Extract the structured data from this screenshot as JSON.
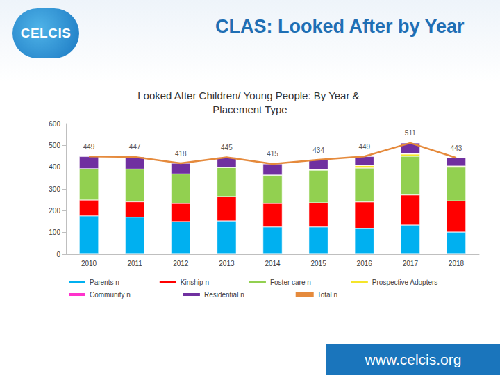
{
  "header": {
    "logo": "CELCIS",
    "title": "CLAS: Looked After by Year",
    "url": "www.celcis.org"
  },
  "chart_data": {
    "type": "bar",
    "title": "Looked After Children/ Young People: By Year & Placement Type",
    "categories": [
      "2010",
      "2011",
      "2012",
      "2013",
      "2014",
      "2015",
      "2016",
      "2017",
      "2018"
    ],
    "stacked": true,
    "grid": false,
    "legend": "bottom",
    "ylim": [
      0,
      600
    ],
    "yticks": [
      0,
      100,
      200,
      300,
      400,
      500,
      600
    ],
    "series": [
      {
        "name": "Parents n",
        "type": "bar",
        "color": "#00b0f0",
        "values": [
          176,
          170,
          150,
          153,
          125,
          125,
          118,
          134,
          102
        ]
      },
      {
        "name": "Kinship n",
        "type": "bar",
        "color": "#ff0000",
        "values": [
          73,
          71,
          83,
          112,
          108,
          111,
          122,
          138,
          143
        ]
      },
      {
        "name": "Foster care n",
        "type": "bar",
        "color": "#92d050",
        "values": [
          144,
          150,
          136,
          134,
          131,
          150,
          156,
          178,
          155
        ]
      },
      {
        "name": "Prospective Adopters",
        "type": "bar",
        "color": "#f5e52a",
        "values": [
          0,
          0,
          0,
          0,
          0,
          3,
          12,
          10,
          5
        ]
      },
      {
        "name": "Community n",
        "type": "bar",
        "color": "#ff33cc",
        "values": [
          0,
          0,
          0,
          0,
          0,
          0,
          0,
          2,
          0
        ]
      },
      {
        "name": "Residential n",
        "type": "bar",
        "color": "#7030a0",
        "values": [
          56,
          56,
          49,
          46,
          51,
          45,
          41,
          49,
          38
        ]
      },
      {
        "name": "Total n",
        "type": "line",
        "color": "#e58a3c",
        "data_labels": true,
        "values": [
          449,
          447,
          418,
          445,
          415,
          434,
          449,
          511,
          443
        ]
      }
    ]
  }
}
